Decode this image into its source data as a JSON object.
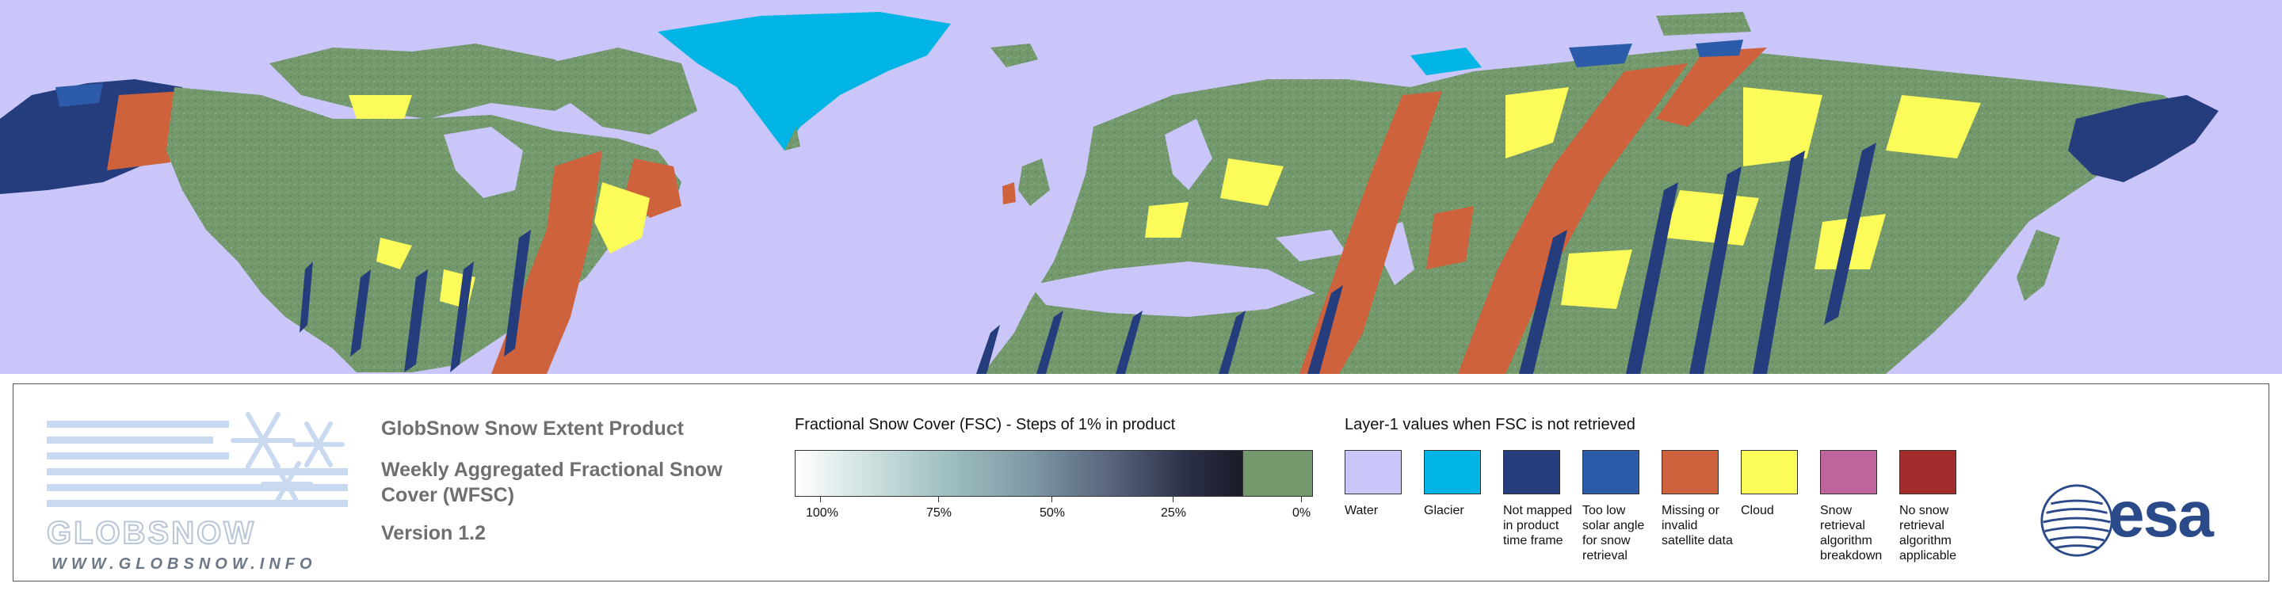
{
  "colors": {
    "water": "#cac6f9",
    "glacier": "#00b4e6",
    "not_mapped": "#253c7d",
    "low_solar": "#2b5ba9",
    "missing": "#cd623c",
    "cloud": "#fbfb5a",
    "breakdown": "#c0649c",
    "no_snow_retrieval": "#a22c2c",
    "fsc_zero": "#73986c"
  },
  "logo": {
    "wordmark": "GLOBSNOW",
    "url": "WWW.GLOBSNOW.INFO"
  },
  "product": {
    "line1": "GlobSnow Snow Extent Product",
    "line2": "Weekly Aggregated Fractional Snow Cover (WFSC)",
    "line3": "Version 1.2"
  },
  "fsc_legend": {
    "title": "Fractional Snow Cover (FSC) - Steps of 1% in product",
    "labels": [
      "100%",
      "75%",
      "50%",
      "25%",
      "0%"
    ]
  },
  "layer1_legend": {
    "title": "Layer-1 values when FSC is not retrieved",
    "items": [
      {
        "label": "Water",
        "color_key": "water"
      },
      {
        "label": "Glacier",
        "color_key": "glacier"
      },
      {
        "label": "Not mapped in product time frame",
        "color_key": "not_mapped"
      },
      {
        "label": "Too low solar angle for snow retrieval",
        "color_key": "low_solar"
      },
      {
        "label": "Missing or invalid satellite data",
        "color_key": "missing"
      },
      {
        "label": "Cloud",
        "color_key": "cloud"
      },
      {
        "label": "Snow retrieval algorithm breakdown",
        "color_key": "breakdown"
      },
      {
        "label": "No snow retrieval algorithm applicable",
        "color_key": "no_snow_retrieval"
      }
    ]
  },
  "agency_logo": {
    "text": "esa"
  }
}
